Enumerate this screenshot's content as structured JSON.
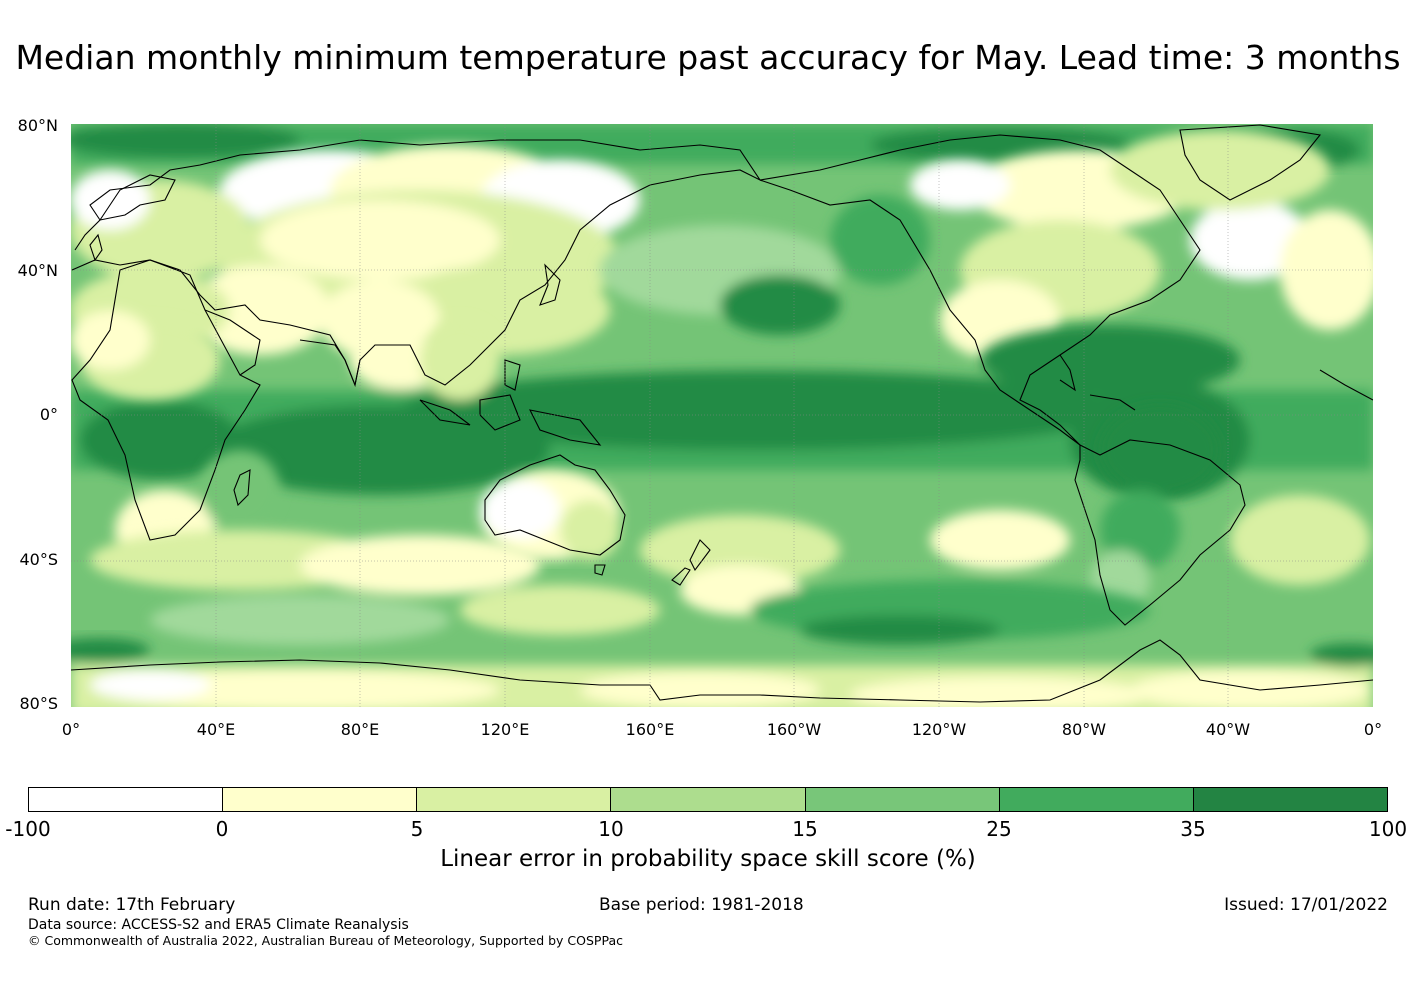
{
  "title": "Median monthly minimum temperature past accuracy for May. Lead time: 3 months",
  "map": {
    "lat_labels": [
      "80°N",
      "40°N",
      "0°",
      "40°S",
      "80°S"
    ],
    "lon_labels": [
      "0°",
      "40°E",
      "80°E",
      "120°E",
      "160°E",
      "160°W",
      "120°W",
      "80°W",
      "40°W",
      "0°"
    ],
    "land_colors": {
      "ocean_base": "#74c476",
      "tropical_band": "#238b45",
      "high_skill": "#41ab5d",
      "mid_skill": "#a1d99b",
      "low_skill": "#d9f0a3",
      "very_low": "#ffffcc",
      "negative": "#ffffff"
    }
  },
  "colorbar": {
    "ticks": [
      "-100",
      "0",
      "5",
      "10",
      "15",
      "25",
      "35",
      "100"
    ],
    "colors": [
      "#ffffff",
      "#ffffcc",
      "#d9f0a3",
      "#addd8e",
      "#78c679",
      "#41ab5d",
      "#238443"
    ],
    "label": "Linear error in probability space skill score (%)"
  },
  "footer": {
    "run_date": "Run date: 17th February",
    "base_period": "Base period: 1981-2018",
    "issued": "Issued: 17/01/2022",
    "data_source": "Data source: ACCESS-S2 and ERA5 Climate Reanalysis",
    "copyright": "© Commonwealth of Australia 2022, Australian Bureau of Meteorology, Supported by COSPPac"
  }
}
